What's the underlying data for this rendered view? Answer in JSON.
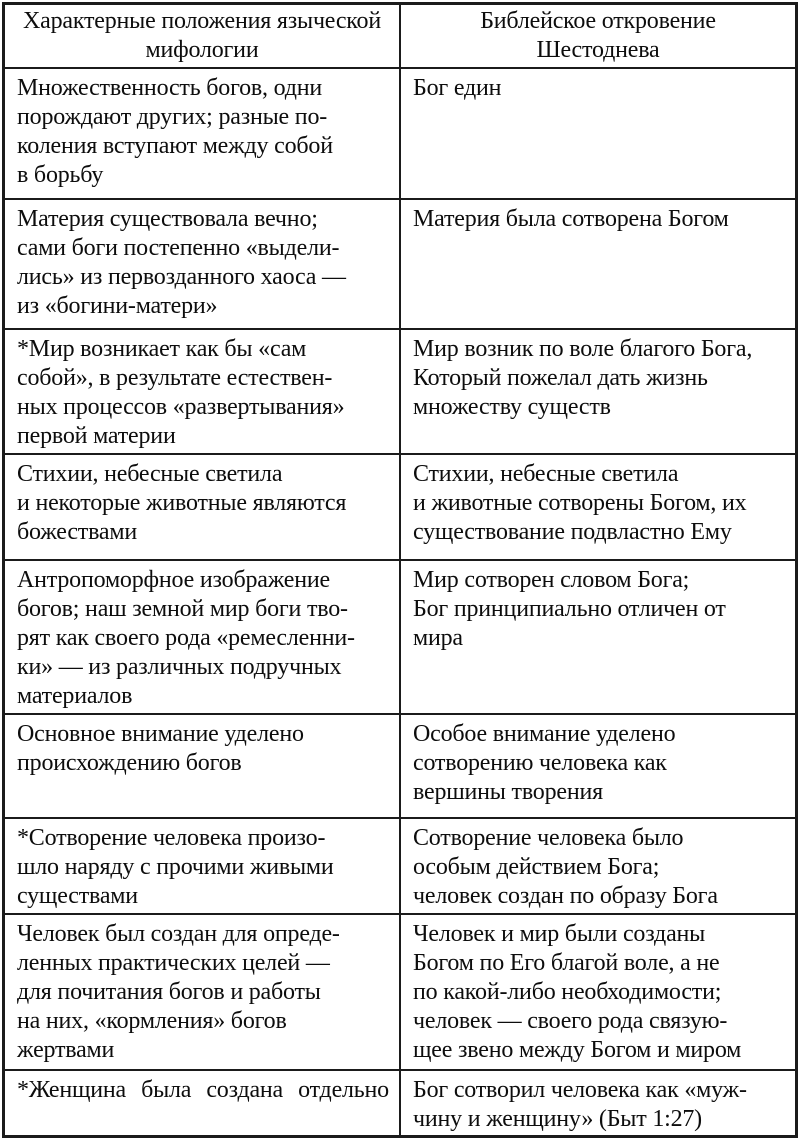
{
  "table": {
    "header": {
      "left": "Характерные положения языческой\nмифологии",
      "right": "Библейское откровение\nШестоднева"
    },
    "rows": [
      {
        "left": "Множественность богов, одни\nпорождают других; разные по-\nколения вступают между собой\nв борьбу",
        "right": "Бог един"
      },
      {
        "left": "Материя существовала вечно;\nсами боги постепенно «выдели-\nлись» из первозданного хаоса —\nиз «богини-матери»",
        "right": "Материя была сотворена Богом"
      },
      {
        "left": "*Мир возникает как бы «сам\nсобой», в результате естествен-\nных процессов «развертывания»\nпервой материи",
        "right": "Мир возник по воле благого Бога,\nКоторый пожелал дать жизнь\nмножеству существ"
      },
      {
        "left": "Стихии, небесные светила\nи некоторые животные являются\nбожествами",
        "right": "Стихии, небесные светила\nи животные сотворены Богом, их\nсуществование подвластно Ему"
      },
      {
        "left": "Антропоморфное изображение\nбогов; наш земной мир боги тво-\nрят как своего рода «ремесленни-\nки» — из различных подручных\nматериалов",
        "right": "Мир сотворен словом Бога;\nБог принципиально отличен от\nмира"
      },
      {
        "left": "Основное внимание уделено\nпроисхождению богов",
        "right": "Особое внимание уделено\nсотворению человека как\nвершины творения"
      },
      {
        "left": "*Сотворение человека произо-\nшло наряду с прочими живыми\nсуществами",
        "right": "Сотворение человека было\nособым действием Бога;\nчеловек создан по образу Бога"
      },
      {
        "left": "Человек был создан для опреде-\nленных практических целей —\nдля почитания богов и работы\nна них, «кормления» богов\nжертвами",
        "right": "Человек и мир были созданы\nБогом по Его благой воле, а не\nпо какой-либо необходимости;\nчеловек — своего рода связую-\nщее звено между Богом и миром"
      },
      {
        "left": "*Женщина была создана отдельно",
        "right": "Бог сотворил человека как «муж-\nчину и женщину» (Быт 1:27)"
      }
    ]
  },
  "colors": {
    "background": "#ffffff",
    "text": "#0d0d0d",
    "border": "#1b1b1b"
  }
}
